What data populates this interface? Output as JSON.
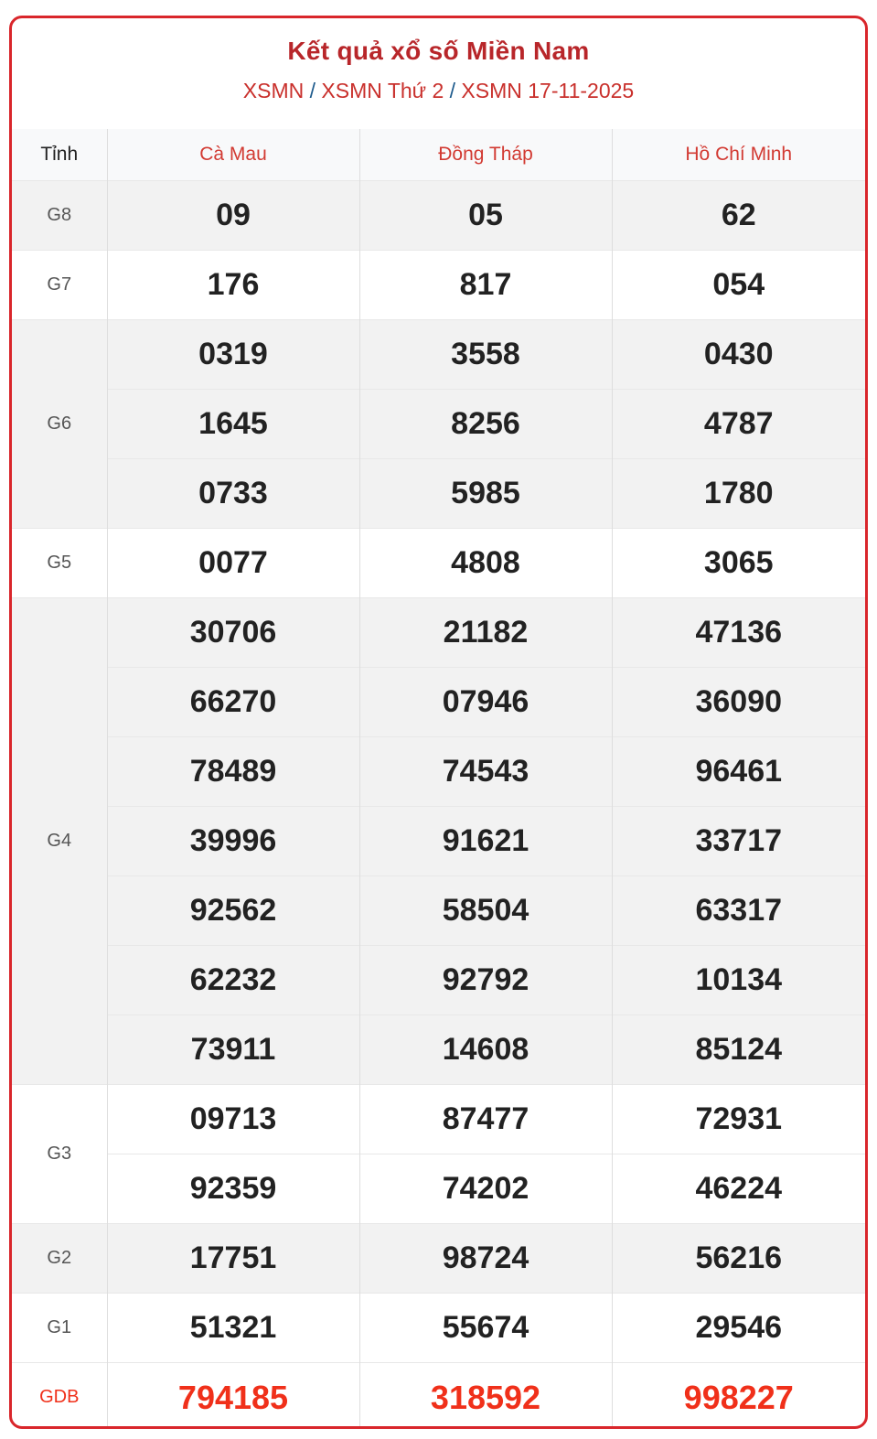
{
  "header": {
    "title": "Kết quả xổ số Miền Nam",
    "breadcrumbs": [
      "XSMN",
      "XSMN Thứ 2",
      "XSMN 17-11-2025"
    ],
    "separator": "/"
  },
  "table": {
    "first_column_label": "Tỉnh",
    "provinces": [
      "Cà Mau",
      "Đồng Tháp",
      "Hồ Chí Minh"
    ],
    "prizes": [
      {
        "label": "G8",
        "rows": [
          [
            "09",
            "05",
            "62"
          ]
        ]
      },
      {
        "label": "G7",
        "rows": [
          [
            "176",
            "817",
            "054"
          ]
        ]
      },
      {
        "label": "G6",
        "rows": [
          [
            "0319",
            "3558",
            "0430"
          ],
          [
            "1645",
            "8256",
            "4787"
          ],
          [
            "0733",
            "5985",
            "1780"
          ]
        ]
      },
      {
        "label": "G5",
        "rows": [
          [
            "0077",
            "4808",
            "3065"
          ]
        ]
      },
      {
        "label": "G4",
        "rows": [
          [
            "30706",
            "21182",
            "47136"
          ],
          [
            "66270",
            "07946",
            "36090"
          ],
          [
            "78489",
            "74543",
            "96461"
          ],
          [
            "39996",
            "91621",
            "33717"
          ],
          [
            "92562",
            "58504",
            "63317"
          ],
          [
            "62232",
            "92792",
            "10134"
          ],
          [
            "73911",
            "14608",
            "85124"
          ]
        ]
      },
      {
        "label": "G3",
        "rows": [
          [
            "09713",
            "87477",
            "72931"
          ],
          [
            "92359",
            "74202",
            "46224"
          ]
        ]
      },
      {
        "label": "G2",
        "rows": [
          [
            "17751",
            "98724",
            "56216"
          ]
        ]
      },
      {
        "label": "G1",
        "rows": [
          [
            "51321",
            "55674",
            "29546"
          ]
        ]
      },
      {
        "label": "GDB",
        "rows": [
          [
            "794185",
            "318592",
            "998227"
          ]
        ],
        "special": true
      }
    ]
  },
  "colors": {
    "accent": "#d9262b",
    "special": "#f0301a",
    "row_alt": "#f2f2f2"
  }
}
